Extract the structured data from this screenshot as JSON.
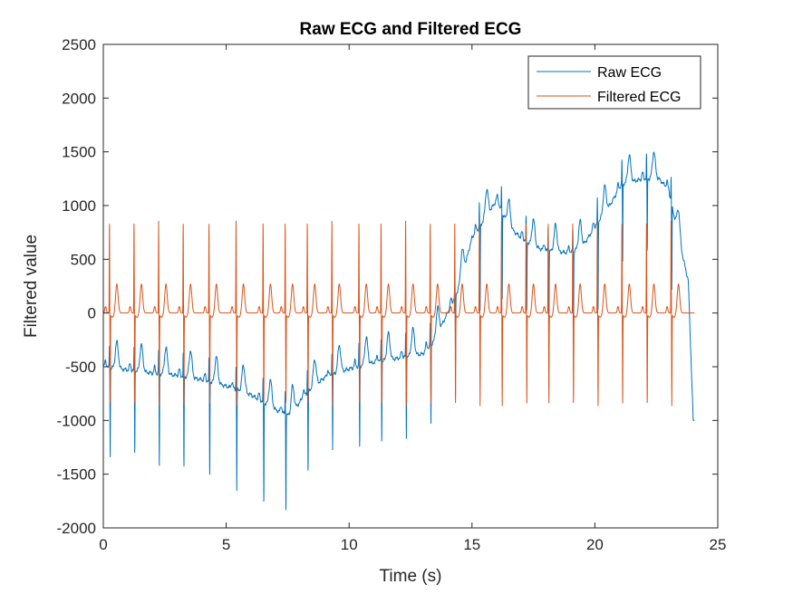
{
  "chart_data": {
    "type": "line",
    "title": "Raw ECG and Filtered ECG",
    "xlabel": "Time (s)",
    "ylabel": "Filtered value",
    "xlim": [
      0,
      25
    ],
    "ylim": [
      -2000,
      2500
    ],
    "xticks": [
      0,
      5,
      10,
      15,
      20,
      25
    ],
    "yticks": [
      -2000,
      -1500,
      -1000,
      -500,
      0,
      500,
      1000,
      1500,
      2000,
      2500
    ],
    "grid": false,
    "legend_position": "top-right",
    "beats": [
      0.25,
      1.25,
      2.25,
      3.25,
      4.3,
      5.4,
      6.5,
      7.4,
      8.3,
      9.3,
      10.4,
      11.3,
      12.3,
      13.3,
      14.3,
      15.3,
      16.2,
      17.2,
      18.1,
      19.1,
      20.1,
      21.1,
      22.1,
      23.1
    ],
    "raw_baseline": [
      [
        0,
        -500
      ],
      [
        1,
        -530
      ],
      [
        2,
        -560
      ],
      [
        3,
        -580
      ],
      [
        4,
        -620
      ],
      [
        5,
        -680
      ],
      [
        6,
        -760
      ],
      [
        7,
        -900
      ],
      [
        7.6,
        -960
      ],
      [
        8.2,
        -760
      ],
      [
        9,
        -600
      ],
      [
        10,
        -520
      ],
      [
        11,
        -460
      ],
      [
        12,
        -420
      ],
      [
        13,
        -380
      ],
      [
        13.5,
        -250
      ],
      [
        14,
        0
      ],
      [
        14.5,
        250
      ],
      [
        15,
        700
      ],
      [
        15.6,
        900
      ],
      [
        16,
        1050
      ],
      [
        16.5,
        800
      ],
      [
        17,
        700
      ],
      [
        17.5,
        620
      ],
      [
        18,
        580
      ],
      [
        19,
        560
      ],
      [
        19.5,
        620
      ],
      [
        20,
        800
      ],
      [
        20.6,
        1000
      ],
      [
        21.1,
        1200
      ],
      [
        22,
        1250
      ],
      [
        22.6,
        1250
      ],
      [
        23,
        1150
      ],
      [
        23.5,
        600
      ],
      [
        23.8,
        300
      ],
      [
        24,
        -1000
      ]
    ],
    "series": [
      {
        "name": "Raw ECG",
        "color": "#0072BD",
        "r_peak_height": [
          850,
          850,
          850,
          850,
          850,
          850,
          850,
          850,
          850,
          850,
          850,
          850,
          850,
          850,
          900,
          900,
          900,
          900,
          900,
          900,
          900,
          900,
          900,
          900
        ],
        "s_trough_depth": [
          -850,
          -780,
          -860,
          -870,
          -880,
          -930,
          -950,
          -900,
          -750,
          -700,
          -780,
          -760,
          -750,
          -760,
          -650,
          -800,
          -800,
          -650,
          -800,
          -800,
          -800,
          -750,
          -700,
          -800
        ]
      },
      {
        "name": "Filtered ECG",
        "color": "#D95319",
        "r_peak_value": 860,
        "s_trough_value": -850,
        "t_wave_value": 270,
        "p_wave_value": 60
      }
    ]
  }
}
